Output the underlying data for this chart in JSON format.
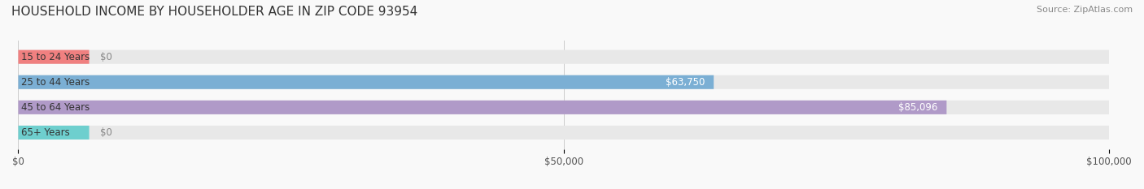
{
  "title": "HOUSEHOLD INCOME BY HOUSEHOLDER AGE IN ZIP CODE 93954",
  "source": "Source: ZipAtlas.com",
  "categories": [
    "15 to 24 Years",
    "25 to 44 Years",
    "45 to 64 Years",
    "65+ Years"
  ],
  "values": [
    0,
    63750,
    85096,
    0
  ],
  "bar_colors": [
    "#f08080",
    "#7bafd4",
    "#b09ac8",
    "#6ecfce"
  ],
  "bg_bar_color": "#eeeeee",
  "xlim": [
    0,
    100000
  ],
  "xticks": [
    0,
    50000,
    100000
  ],
  "xtick_labels": [
    "$0",
    "$50,000",
    "$100,000"
  ],
  "value_labels": [
    "$0",
    "$63,750",
    "$85,096",
    "$0"
  ],
  "value_label_colors": [
    "#888888",
    "#ffffff",
    "#ffffff",
    "#888888"
  ],
  "background_color": "#f9f9f9",
  "bar_background": "#e8e8e8",
  "title_fontsize": 11,
  "source_fontsize": 8,
  "label_fontsize": 8.5,
  "tick_fontsize": 8.5,
  "value_fontsize": 8.5,
  "bar_height": 0.55
}
